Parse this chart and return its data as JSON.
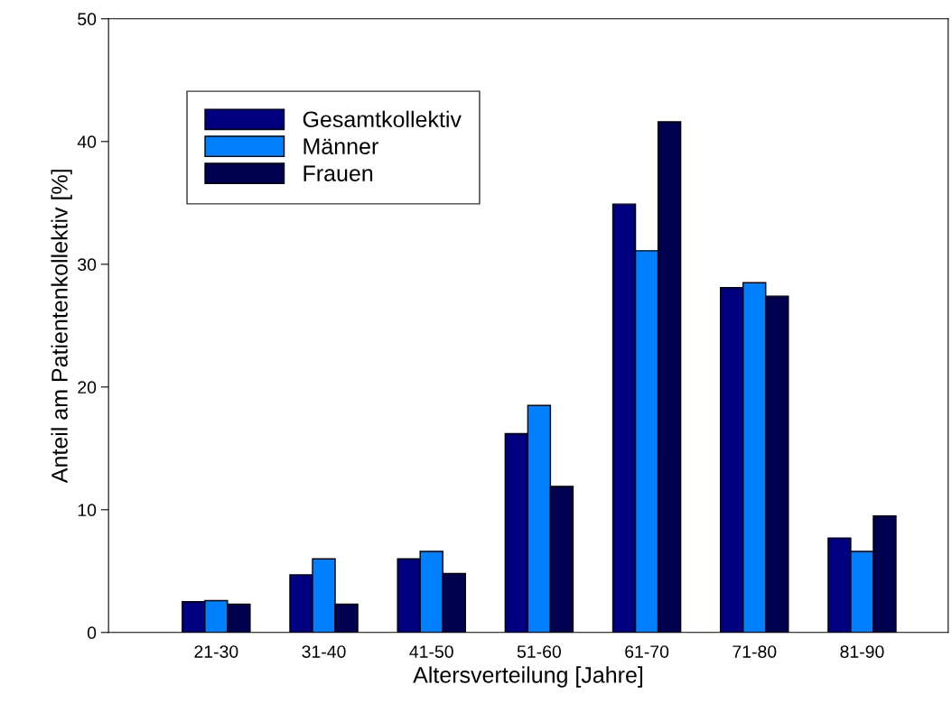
{
  "chart_data": {
    "type": "bar",
    "xlabel": "Altersverteilung [Jahre]",
    "ylabel": "Anteil am Patientenkollektiv [%]",
    "categories": [
      "21-30",
      "31-40",
      "41-50",
      "51-60",
      "61-70",
      "71-80",
      "81-90"
    ],
    "series": [
      {
        "name": "Gesamtkollektiv",
        "color": "#000080",
        "values": [
          2.5,
          4.7,
          6.0,
          16.2,
          34.9,
          28.1,
          7.7
        ]
      },
      {
        "name": "Männer",
        "color": "#0080ff",
        "values": [
          2.6,
          6.0,
          6.6,
          18.5,
          31.1,
          28.5,
          6.6
        ]
      },
      {
        "name": "Frauen",
        "color": "#000050",
        "values": [
          2.3,
          2.3,
          4.8,
          11.9,
          41.6,
          27.4,
          9.5
        ]
      }
    ],
    "ylim": [
      0,
      50
    ],
    "yticks": [
      0,
      10,
      20,
      30,
      40,
      50
    ],
    "grid": false,
    "legend": "top left"
  }
}
